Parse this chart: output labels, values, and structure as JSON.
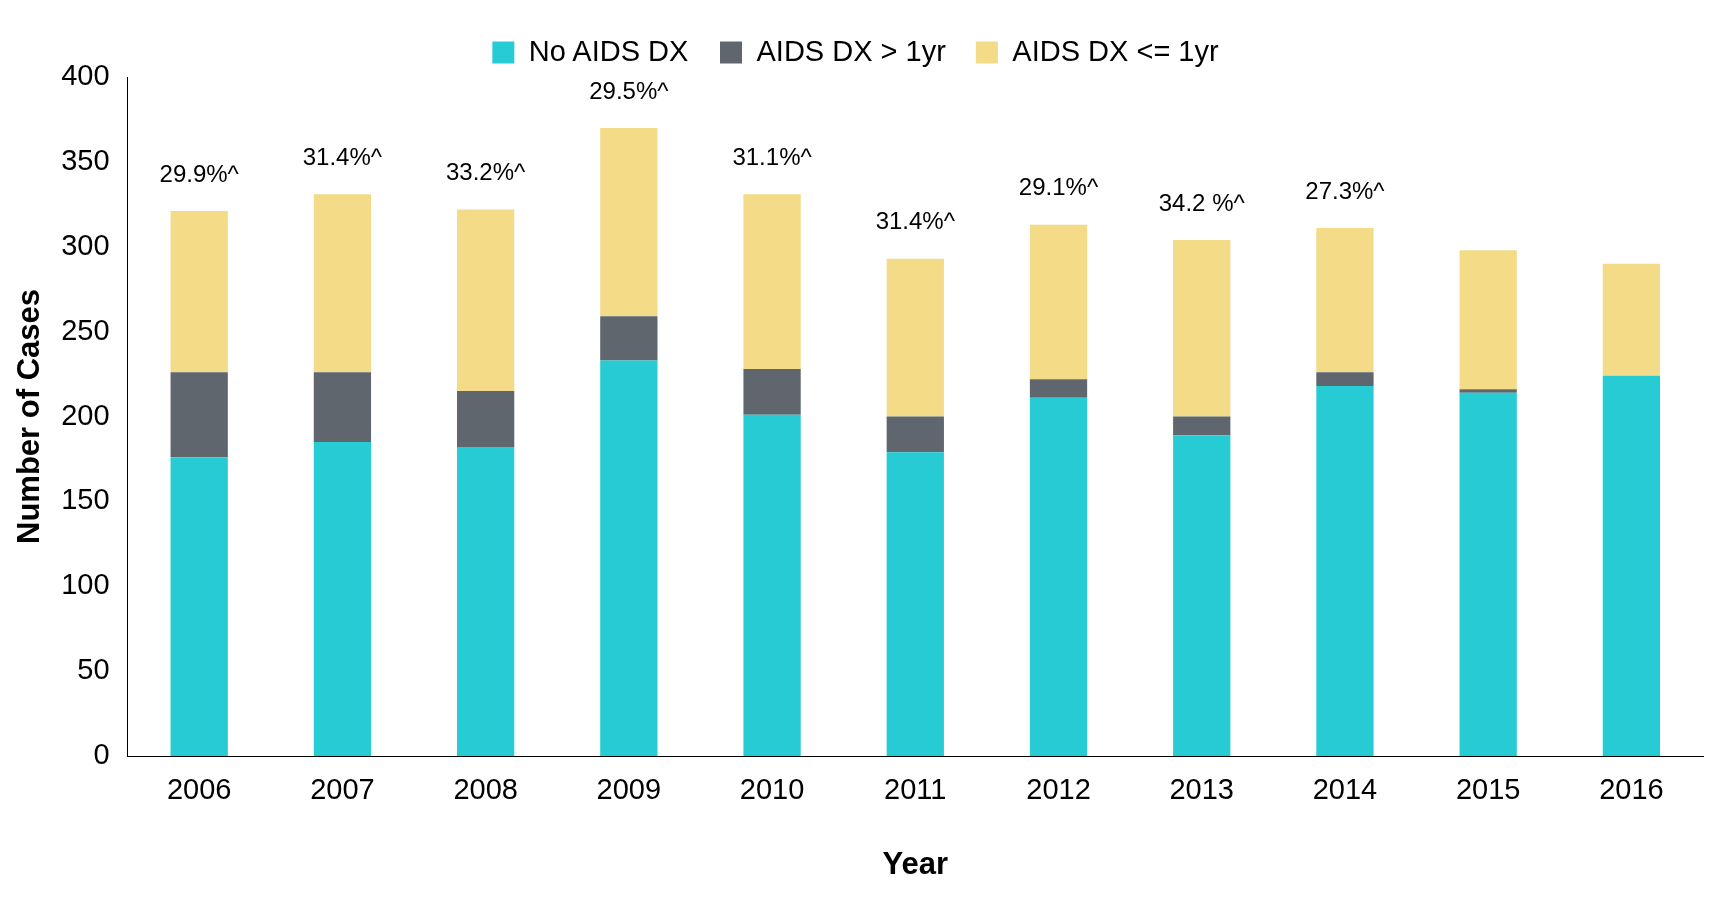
{
  "chart_data": {
    "type": "bar",
    "stacked": true,
    "xlabel": "Year",
    "ylabel": "Number of Cases",
    "categories": [
      "2006",
      "2007",
      "2008",
      "2009",
      "2010",
      "2011",
      "2012",
      "2013",
      "2014",
      "2015",
      "2016"
    ],
    "series": [
      {
        "name": "No AIDS DX",
        "color": "#26cbd3",
        "values": [
          176,
          185,
          182,
          233,
          201,
          179,
          211,
          189,
          218,
          214,
          224
        ]
      },
      {
        "name": "AIDS DX > 1yr",
        "color": "#5f666d",
        "values": [
          50,
          41,
          33,
          26,
          27,
          21,
          11,
          11,
          8,
          2,
          0
        ]
      },
      {
        "name": "AIDS DX <= 1yr",
        "color": "#f3db87",
        "values": [
          95,
          105,
          107,
          111,
          103,
          93,
          91,
          104,
          85,
          82,
          66
        ]
      }
    ],
    "ylim": [
      0,
      400
    ],
    "yticks": [
      0,
      50,
      100,
      150,
      200,
      250,
      300,
      350,
      400
    ],
    "grid": false,
    "legend": "top",
    "annotations": [
      "29.9%^",
      "31.4%^",
      "33.2%^",
      "29.5%^",
      "31.1%^",
      "31.4%^",
      "29.1%^",
      "34.2 %^",
      "27.3%^"
    ]
  }
}
